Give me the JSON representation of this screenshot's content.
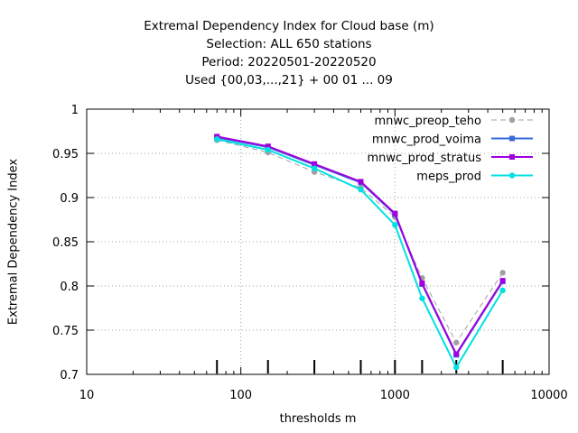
{
  "chart_data": {
    "type": "line",
    "title_lines": [
      "Extremal Dependency Index  for Cloud base (m)",
      "Selection: ALL    650 stations",
      "Period: 20220501-20220520",
      "Used {00,03,...,21} + 00 01 ... 09"
    ],
    "xlabel": "thresholds m",
    "ylabel": "Extremal Dependency Index",
    "xscale": "log",
    "xlim": [
      10,
      10000
    ],
    "ylim": [
      0.7,
      1.0
    ],
    "xticks": [
      10,
      100,
      1000,
      10000
    ],
    "xtick_labels": [
      "10",
      "100",
      "1000",
      "10000"
    ],
    "yticks": [
      0.7,
      0.75,
      0.8,
      0.85,
      0.9,
      0.95,
      1.0
    ],
    "ytick_labels": [
      "0.7",
      "0.75",
      "0.8",
      "0.85",
      "0.9",
      "0.95",
      "1"
    ],
    "grid": true,
    "legend_position": "top-right",
    "x": [
      70,
      150,
      300,
      600,
      1000,
      1500,
      2500,
      5000
    ],
    "series": [
      {
        "name": "mnwc_preop_teho",
        "color": "#a0a0a0",
        "dashed": true,
        "marker": "circle",
        "values": [
          0.965,
          0.951,
          0.929,
          0.911,
          0.878,
          0.809,
          0.736,
          0.815
        ]
      },
      {
        "name": "mnwc_prod_voima",
        "color": "#3a68d8",
        "dashed": false,
        "marker": "square",
        "values": [
          0.968,
          0.957,
          0.937,
          0.917,
          0.881,
          0.802,
          0.722,
          0.805
        ]
      },
      {
        "name": "mnwc_prod_stratus",
        "color": "#a000e0",
        "dashed": false,
        "marker": "square",
        "values": [
          0.969,
          0.958,
          0.938,
          0.918,
          0.882,
          0.803,
          0.723,
          0.806
        ]
      },
      {
        "name": "meps_prod",
        "color": "#00e0e0",
        "dashed": false,
        "marker": "circle",
        "values": [
          0.966,
          0.954,
          0.933,
          0.909,
          0.869,
          0.786,
          0.708,
          0.795
        ]
      }
    ],
    "sample_marks_at": [
      70,
      150,
      300,
      600,
      1000,
      1500,
      2500,
      5000
    ]
  }
}
